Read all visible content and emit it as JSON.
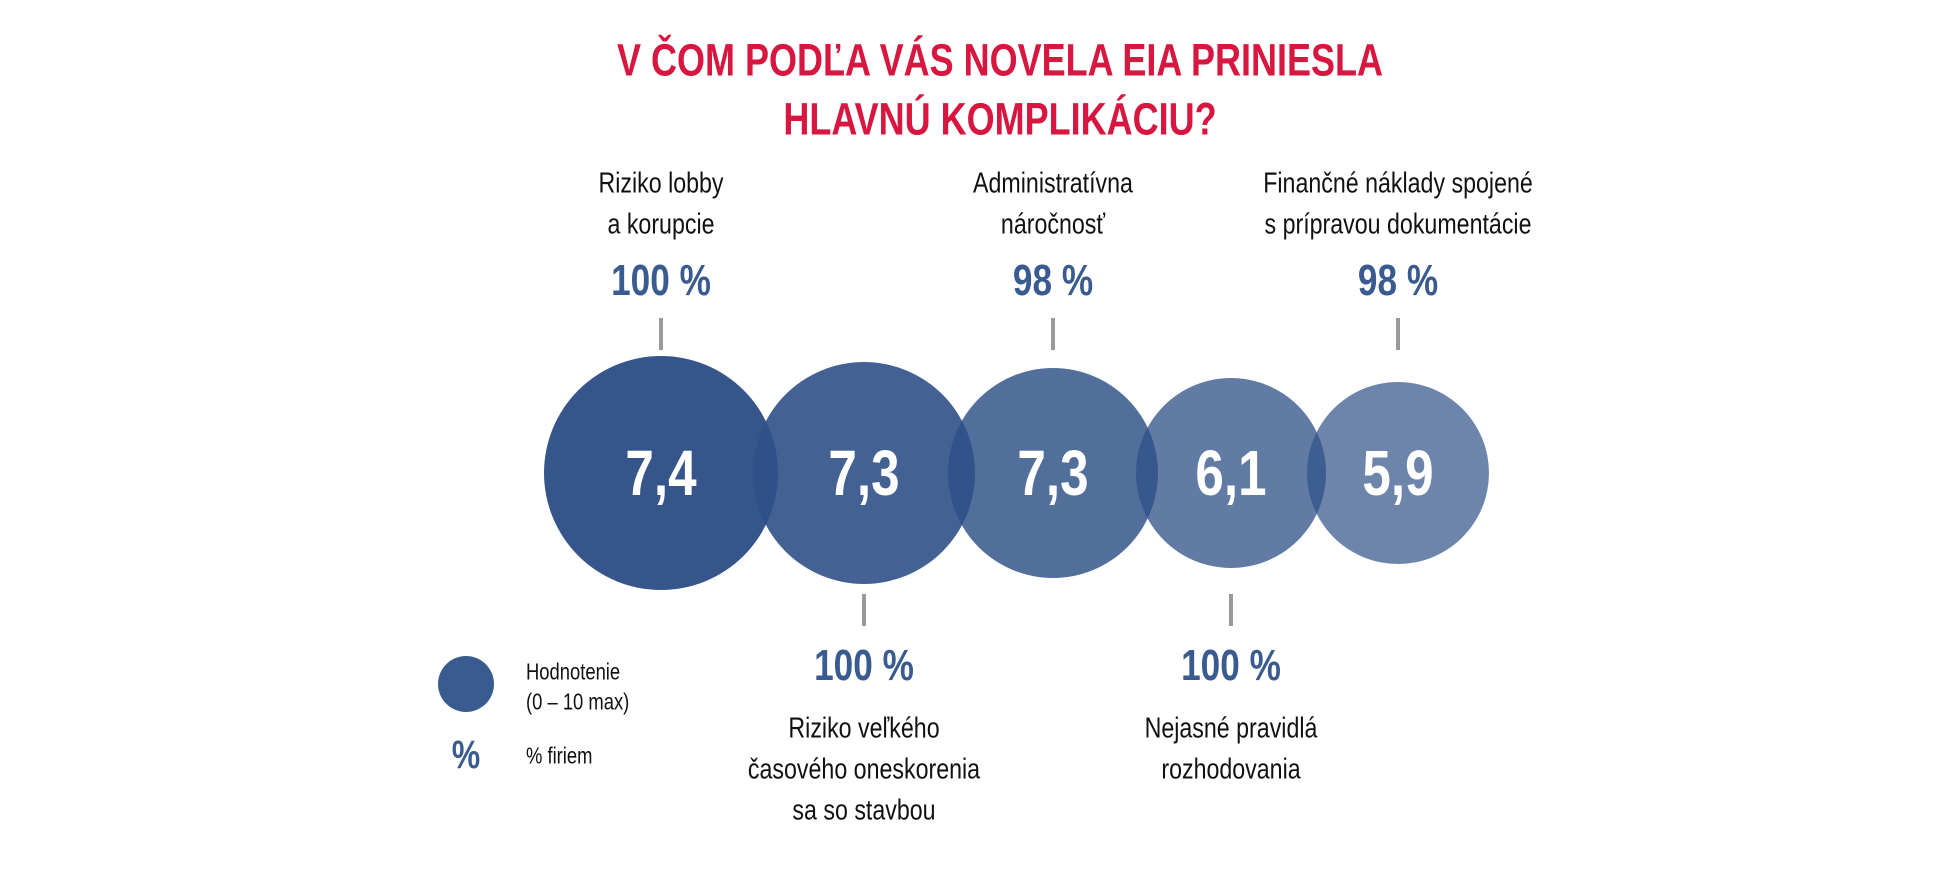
{
  "colors": {
    "title": "#d7173f",
    "accent": "#3a5b8f",
    "tick": "#9a9a9a",
    "circle_text": "#ffffff"
  },
  "chart_data": {
    "type": "bubble",
    "title_lines": [
      "V ČOM PODĽA VÁS NOVELA EIA PRINIESLA",
      "HLAVNÚ KOMPLIKÁCIU?"
    ],
    "items": [
      {
        "label_lines": [
          "Riziko lobby",
          "a korupcie"
        ],
        "rating": "7,4",
        "rating_value": 7.4,
        "percent": "100 %",
        "percent_value": 100,
        "label_position": "top"
      },
      {
        "label_lines": [
          "Riziko veľkého",
          "časového oneskorenia",
          "sa so stavbou"
        ],
        "rating": "7,3",
        "rating_value": 7.3,
        "percent": "100 %",
        "percent_value": 100,
        "label_position": "bottom"
      },
      {
        "label_lines": [
          "Administratívna",
          "náročnosť"
        ],
        "rating": "7,3",
        "rating_value": 7.3,
        "percent": "98 %",
        "percent_value": 98,
        "label_position": "top"
      },
      {
        "label_lines": [
          "Nejasné pravidlá",
          "rozhodovania"
        ],
        "rating": "6,1",
        "rating_value": 6.1,
        "percent": "100 %",
        "percent_value": 100,
        "label_position": "bottom"
      },
      {
        "label_lines": [
          "Finančné náklady spojené",
          "s prípravou dokumentácie"
        ],
        "rating": "5,9",
        "rating_value": 5.9,
        "percent": "98 %",
        "percent_value": 98,
        "label_position": "top"
      }
    ],
    "legend": {
      "circle_lines": [
        "Hodnotenie",
        "(0 – 10 max)"
      ],
      "percent_symbol": "%",
      "percent_text": "% firiem",
      "placement": "bottom-left"
    }
  }
}
